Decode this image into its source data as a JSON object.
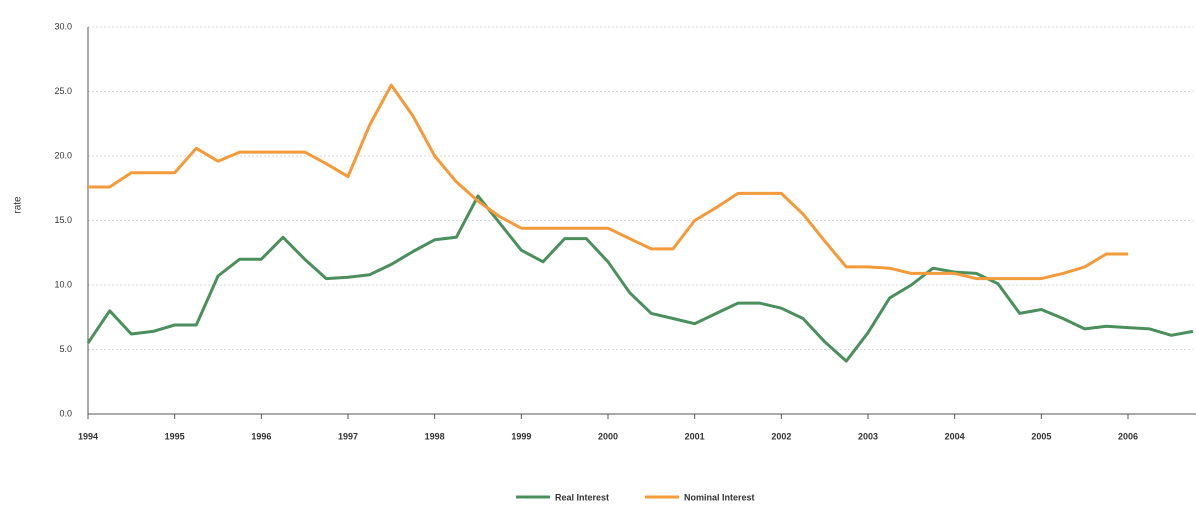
{
  "chart_data": {
    "type": "line",
    "y_label": "rate",
    "categories": [
      "1994",
      null,
      null,
      null,
      "1995",
      null,
      null,
      null,
      "1996",
      null,
      null,
      null,
      "1997",
      null,
      null,
      null,
      "1998",
      null,
      null,
      null,
      "1999",
      null,
      null,
      null,
      "2000",
      null,
      null,
      null,
      "2001",
      null,
      null,
      null,
      "2002",
      null,
      null,
      null,
      "2003",
      null,
      null,
      null,
      "2004",
      null,
      null,
      null,
      "2005",
      null,
      null,
      null,
      "2006",
      null,
      null,
      null
    ],
    "series": [
      {
        "name": "Real Interest",
        "color": "#4a8f5c",
        "values": [
          5.5,
          8.0,
          6.2,
          6.4,
          6.9,
          6.9,
          10.7,
          12.0,
          12.0,
          13.7,
          12.0,
          10.5,
          10.6,
          10.8,
          11.6,
          12.6,
          13.5,
          13.7,
          16.9,
          14.8,
          12.7,
          11.8,
          13.6,
          13.6,
          11.8,
          9.4,
          7.8,
          7.4,
          7.0,
          7.8,
          8.6,
          8.6,
          8.2,
          7.4,
          5.6,
          4.1,
          6.3,
          9.0,
          10.0,
          11.3,
          11.0,
          10.9,
          10.1,
          7.8,
          8.1,
          7.4,
          6.6,
          6.8,
          6.7,
          6.6,
          6.1,
          6.4
        ]
      },
      {
        "name": "Nominal Interest",
        "color": "#f39a3a",
        "values": [
          17.6,
          17.6,
          18.7,
          18.7,
          18.7,
          20.6,
          19.6,
          20.3,
          20.3,
          20.3,
          20.3,
          19.4,
          18.4,
          22.4,
          25.5,
          23.1,
          20.0,
          18.0,
          16.5,
          15.3,
          14.4,
          14.4,
          14.4,
          14.4,
          14.4,
          13.6,
          12.8,
          12.8,
          15.0,
          16.0,
          17.1,
          17.1,
          17.1,
          15.5,
          13.4,
          11.4,
          11.4,
          11.3,
          10.9,
          10.9,
          10.9,
          10.5,
          10.5,
          10.5,
          10.5,
          10.9,
          11.4,
          12.4,
          12.4,
          null,
          null,
          null
        ]
      }
    ],
    "ylim": [
      0,
      30
    ],
    "yticks": [
      {
        "value": 0,
        "label": "0.0"
      },
      {
        "value": 5,
        "label": "5.0"
      },
      {
        "value": 10,
        "label": "10.0"
      },
      {
        "value": 15,
        "label": "15.0"
      },
      {
        "value": 20,
        "label": "20.0"
      },
      {
        "value": 25,
        "label": "25.0"
      },
      {
        "value": 30,
        "label": "30.0"
      }
    ],
    "grid": true,
    "legend": "bottom"
  }
}
